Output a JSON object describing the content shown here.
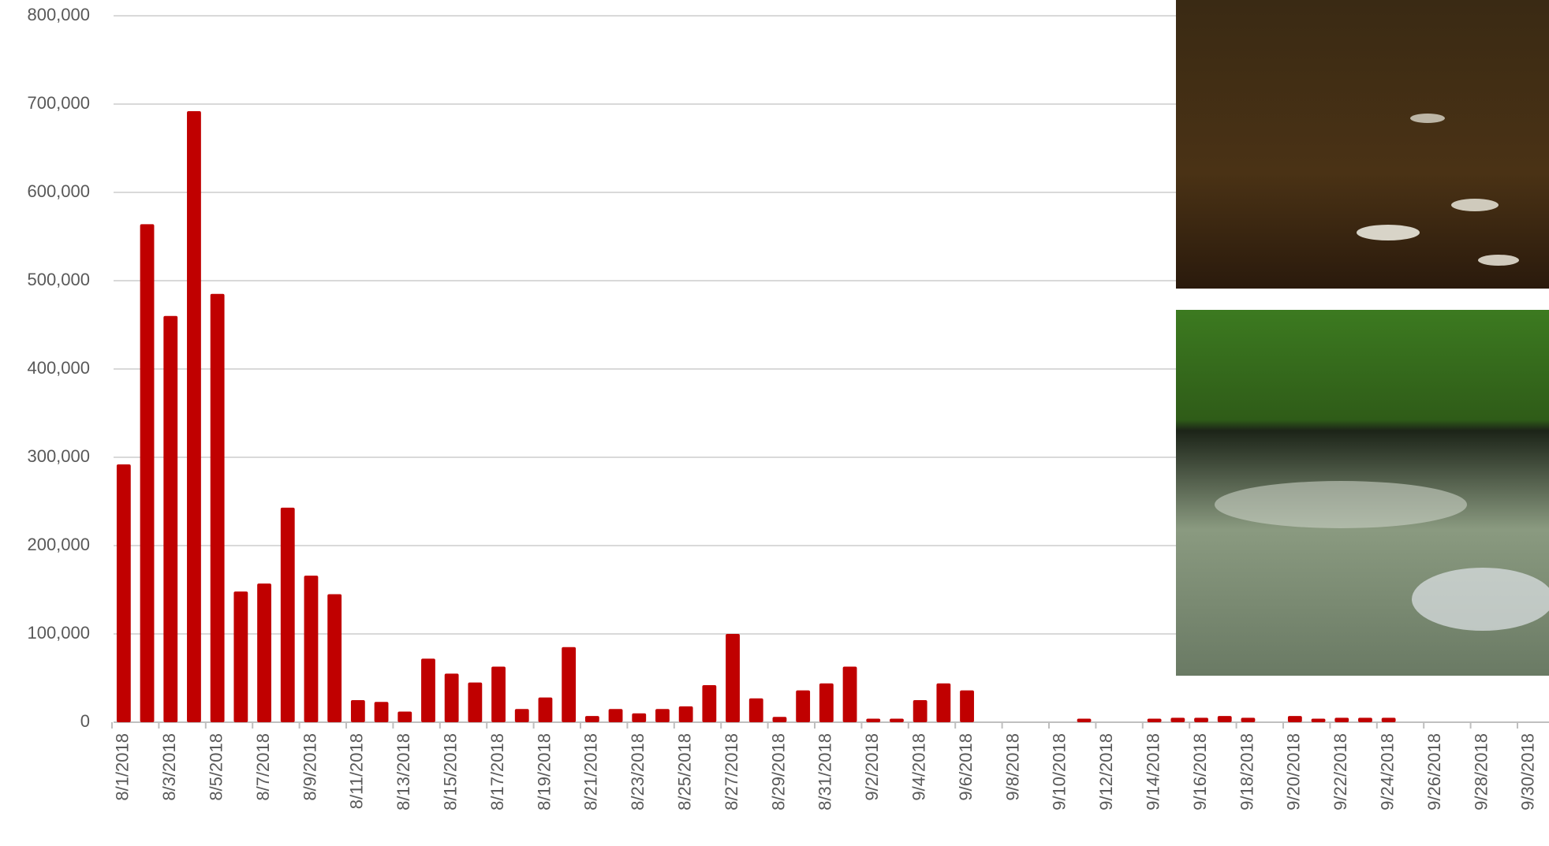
{
  "chart_data": {
    "type": "bar",
    "categories": [
      "8/1/2018",
      null,
      "8/3/2018",
      null,
      "8/5/2018",
      null,
      "8/7/2018",
      null,
      "8/9/2018",
      null,
      "8/11/2018",
      null,
      "8/13/2018",
      null,
      "8/15/2018",
      null,
      "8/17/2018",
      null,
      "8/19/2018",
      null,
      "8/21/2018",
      null,
      "8/23/2018",
      null,
      "8/25/2018",
      null,
      "8/27/2018",
      null,
      "8/29/2018",
      null,
      "8/31/2018",
      null,
      "9/2/2018",
      null,
      "9/4/2018",
      null,
      "9/6/2018",
      null,
      "9/8/2018",
      null,
      "9/10/2018",
      null,
      "9/12/2018",
      null,
      "9/14/2018",
      null,
      "9/16/2018",
      null,
      "9/18/2018",
      null,
      "9/20/2018",
      null,
      "9/22/2018",
      null,
      "9/24/2018",
      null,
      "9/26/2018",
      null,
      "9/28/2018",
      null,
      "9/30/2018"
    ],
    "values": [
      292000,
      564000,
      460000,
      692000,
      485000,
      148000,
      157000,
      243000,
      166000,
      145000,
      25000,
      23000,
      12000,
      72000,
      55000,
      45000,
      63000,
      15000,
      28000,
      85000,
      7000,
      15000,
      10000,
      15000,
      18000,
      42000,
      100000,
      27000,
      6000,
      36000,
      44000,
      63000,
      4000,
      4000,
      25000,
      44000,
      36000,
      0,
      0,
      0,
      0,
      4000,
      0,
      0,
      4000,
      5000,
      5000,
      7000,
      5000,
      0,
      7000,
      4000,
      5000,
      5000,
      5000,
      0,
      0,
      0,
      0,
      0,
      0
    ],
    "color": "#c00000",
    "ylim": [
      0,
      800000
    ],
    "yticks": [
      0,
      {
        "value": 100000,
        "label": "100,000"
      },
      {
        "value": 200000,
        "label": "200,000"
      },
      {
        "value": 300000,
        "label": "300,000"
      },
      {
        "value": 400000,
        "label": "400,000"
      },
      {
        "value": 500000,
        "label": "500,000"
      },
      {
        "value": 600000,
        "label": "600,000"
      },
      {
        "value": 700000,
        "label": "700,000"
      },
      {
        "value": 800000,
        "label": "800,000"
      }
    ],
    "grid": true
  }
}
